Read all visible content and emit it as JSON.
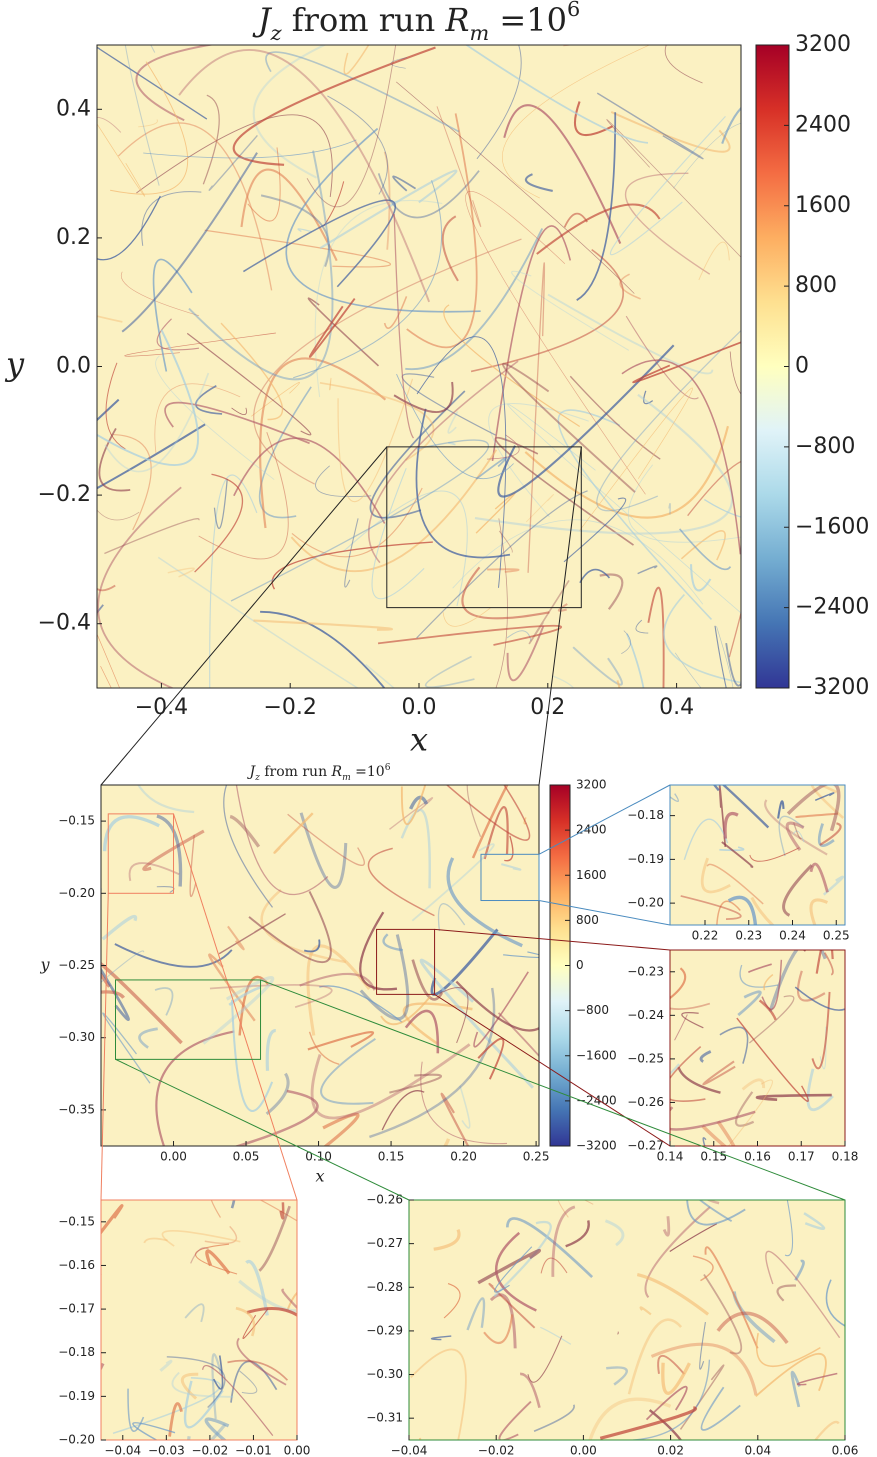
{
  "chart_data": [
    {
      "type": "heatmap",
      "title": [
        "J",
        "z",
        " from run ",
        "R",
        "m",
        " =10",
        "6"
      ],
      "xlabel": "x",
      "ylabel": "y",
      "xlim": [
        -0.5,
        0.5
      ],
      "ylim": [
        -0.5,
        0.5
      ],
      "frame_color": "#222222",
      "xticks": [
        {
          "value": -0.4,
          "label": "−0.4"
        },
        {
          "value": -0.2,
          "label": "−0.2"
        },
        {
          "value": 0,
          "label": "0.0"
        },
        0.2,
        0.4
      ],
      "yticks": [
        {
          "value": -0.4,
          "label": "−0.4"
        },
        {
          "value": -0.2,
          "label": "−0.2"
        },
        {
          "value": 0,
          "label": "0.0"
        },
        0.2,
        0.4
      ],
      "colorbar": {
        "lim": [
          -3200,
          3200
        ],
        "ticks": [
          3200,
          2400,
          1600,
          800,
          0,
          {
            "value": -800,
            "label": "−800"
          },
          {
            "value": -1600,
            "label": "−1600"
          },
          {
            "value": -2400,
            "label": "−2400"
          },
          {
            "value": -3200,
            "label": "−3200"
          }
        ]
      }
    },
    {
      "type": "heatmap",
      "title": [
        "J",
        "z",
        " from run ",
        "R",
        "m",
        " =10",
        "6"
      ],
      "xlabel": "x",
      "ylabel": "y",
      "xlim": [
        -0.05,
        0.252
      ],
      "ylim": [
        -0.375,
        -0.125
      ],
      "frame_color": "#222222",
      "source": 0,
      "xticks": [
        {
          "value": 0,
          "label": "0.00"
        },
        0.05,
        {
          "value": 0.1,
          "label": "0.10"
        },
        0.15,
        {
          "value": 0.2,
          "label": "0.20"
        },
        0.25
      ],
      "yticks": [
        {
          "value": -0.15,
          "label": "−0.15"
        },
        {
          "value": -0.2,
          "label": "−0.20"
        },
        {
          "value": -0.25,
          "label": "−0.25"
        },
        {
          "value": -0.3,
          "label": "−0.30"
        },
        {
          "value": -0.35,
          "label": "−0.35"
        }
      ],
      "colorbar": {
        "lim": [
          -3200,
          3200
        ],
        "ticks": [
          3200,
          2400,
          1600,
          800,
          0,
          {
            "value": -800,
            "label": "−800"
          },
          {
            "value": -1600,
            "label": "−1600"
          },
          {
            "value": -2400,
            "label": "−2400"
          },
          {
            "value": -3200,
            "label": "−3200"
          }
        ]
      }
    },
    {
      "type": "heatmap",
      "xlim": [
        0.212,
        0.252
      ],
      "ylim": [
        -0.205,
        -0.173
      ],
      "frame_color": "#4a8bbf",
      "source": 1,
      "xticks": [
        0.22,
        0.23,
        0.24,
        0.25
      ],
      "yticks": [
        {
          "value": -0.18,
          "label": "−0.18"
        },
        {
          "value": -0.19,
          "label": "−0.19"
        },
        {
          "value": -0.2,
          "label": "−0.20"
        }
      ]
    },
    {
      "type": "heatmap",
      "xlim": [
        0.14,
        0.18
      ],
      "ylim": [
        -0.27,
        -0.225
      ],
      "frame_color": "#8b1a1a",
      "source": 1,
      "xticks": [
        0.14,
        0.15,
        0.16,
        0.17,
        0.18
      ],
      "yticks": [
        {
          "value": -0.23,
          "label": "−0.23"
        },
        {
          "value": -0.24,
          "label": "−0.24"
        },
        {
          "value": -0.25,
          "label": "−0.25"
        },
        {
          "value": -0.26,
          "label": "−0.26"
        },
        {
          "value": -0.27,
          "label": "−0.27"
        }
      ]
    },
    {
      "type": "heatmap",
      "xlim": [
        -0.045,
        0
      ],
      "ylim": [
        -0.2,
        -0.145
      ],
      "frame_color": "#f08060",
      "source": 1,
      "xticks": [
        {
          "value": -0.04,
          "label": "−0.04"
        },
        {
          "value": -0.03,
          "label": "−0.03"
        },
        {
          "value": -0.02,
          "label": "−0.02"
        },
        {
          "value": -0.01,
          "label": "−0.01"
        },
        {
          "value": 0,
          "label": "0.00"
        }
      ],
      "yticks": [
        {
          "value": -0.15,
          "label": "−0.15"
        },
        {
          "value": -0.16,
          "label": "−0.16"
        },
        {
          "value": -0.17,
          "label": "−0.17"
        },
        {
          "value": -0.18,
          "label": "−0.18"
        },
        {
          "value": -0.19,
          "label": "−0.19"
        },
        {
          "value": -0.2,
          "label": "−0.20"
        }
      ]
    },
    {
      "type": "heatmap",
      "xlim": [
        -0.04,
        0.06
      ],
      "ylim": [
        -0.315,
        -0.26
      ],
      "frame_color": "#2e8b3a",
      "source": 1,
      "xticks": [
        {
          "value": -0.04,
          "label": "−0.04"
        },
        {
          "value": -0.02,
          "label": "−0.02"
        },
        {
          "value": 0,
          "label": "0.00"
        },
        0.02,
        0.04,
        0.06
      ],
      "yticks": [
        {
          "value": -0.26,
          "label": "−0.26"
        },
        {
          "value": -0.27,
          "label": "−0.27"
        },
        {
          "value": -0.28,
          "label": "−0.28"
        },
        {
          "value": -0.29,
          "label": "−0.29"
        },
        {
          "value": -0.3,
          "label": "−0.30"
        },
        {
          "value": -0.31,
          "label": "−0.31"
        }
      ]
    }
  ]
}
